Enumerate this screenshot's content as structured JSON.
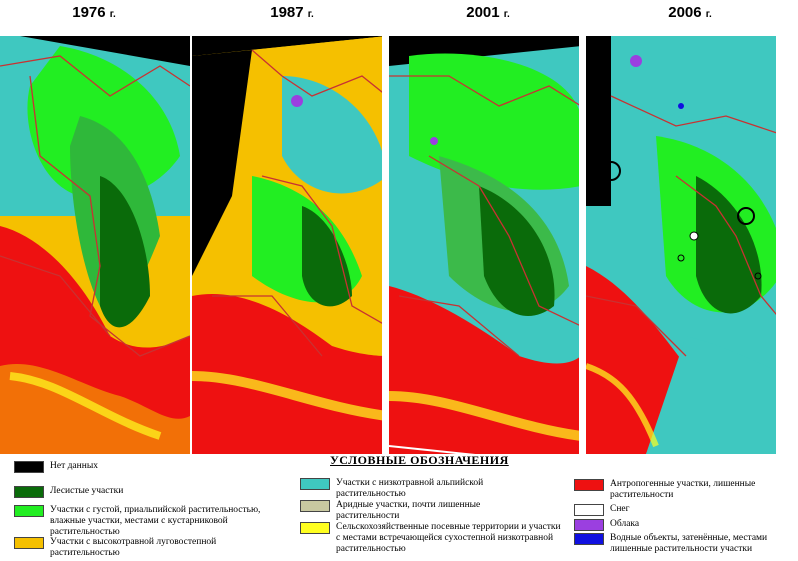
{
  "years": [
    {
      "year": "1976",
      "suffix": "г."
    },
    {
      "year": "1987",
      "suffix": "г."
    },
    {
      "year": "2001",
      "suffix": "г."
    },
    {
      "year": "2006",
      "suffix": "г."
    }
  ],
  "legend": {
    "title": "УСЛОВНЫЕ ОБОЗНАЧЕНИЯ",
    "items": [
      {
        "id": "no-data",
        "color": "#000000",
        "text": "Нет данных"
      },
      {
        "id": "forest",
        "color": "#0a6b0a",
        "text": "Лесистые участки"
      },
      {
        "id": "dense-subalpine",
        "color": "#22ee22",
        "text": "Участки с густой, приальпийской растительностью, влажные участки, местами с кустарниковой растительностью"
      },
      {
        "id": "tall-grass",
        "color": "#f5c000",
        "text": "Участки с высокотравной луговостепной растительностью"
      },
      {
        "id": "low-grass-alpine",
        "color": "#3fc8c0",
        "text": "Участки с низкотравной альпийской растительностью"
      },
      {
        "id": "arid",
        "color": "#c8c8a0",
        "text": "Аридные участки, почти лишенные растительности"
      },
      {
        "id": "agri",
        "color": "#ffff20",
        "text": "Сельскохозяйственные посевные территории и участки с местами встречающейся сухостепной низкотравной растительностью"
      },
      {
        "id": "anthropogenic",
        "color": "#ee1111",
        "text": "Антропогенные участки, лишенные растительности"
      },
      {
        "id": "snow",
        "color": "#ffffff",
        "text": "Снег"
      },
      {
        "id": "clouds",
        "color": "#9b3fe0",
        "text": "Облака"
      },
      {
        "id": "water",
        "color": "#1010e0",
        "text": "Водные объекты, затенённые, местами лишенные растительности участки"
      }
    ]
  }
}
